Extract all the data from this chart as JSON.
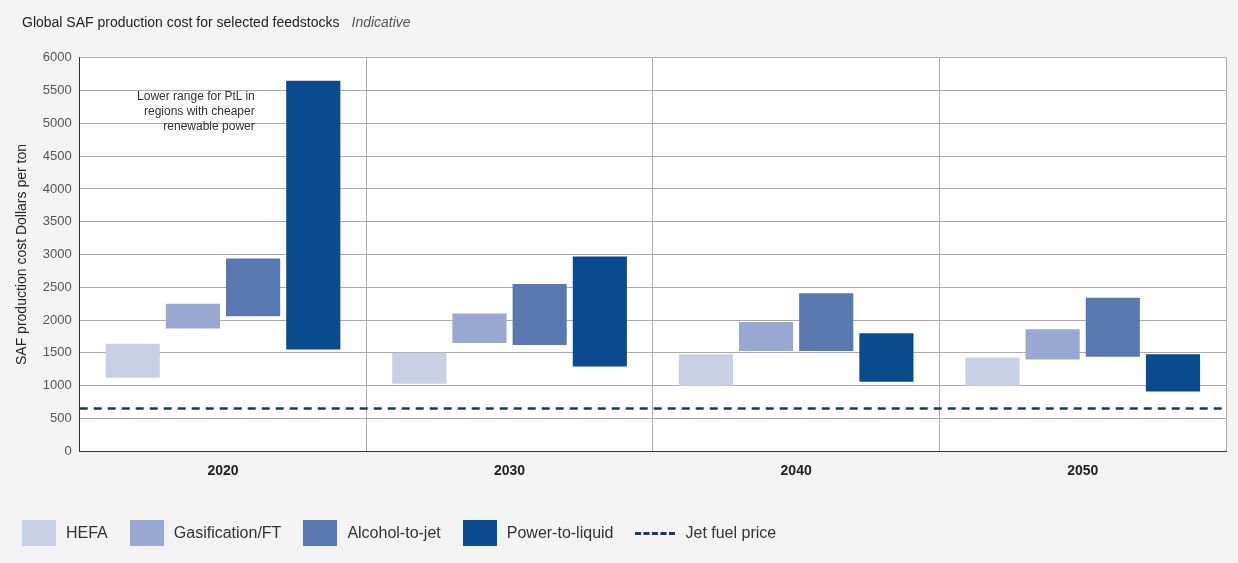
{
  "chart_data": {
    "type": "bar",
    "title": "Global SAF production cost for selected feedstocks",
    "subtitle": "Indicative",
    "ylabel": "SAF production cost Dollars per ton",
    "categories": [
      "2020",
      "2030",
      "2040",
      "2050"
    ],
    "series": [
      {
        "name": "HEFA",
        "color": "#c9d0e6",
        "base": [
          1120,
          1030,
          1000,
          1000
        ],
        "values": [
          520,
          470,
          480,
          430
        ]
      },
      {
        "name": "Gasification/FT",
        "color": "#98a8d0",
        "base": [
          1870,
          1650,
          1530,
          1400
        ],
        "values": [
          380,
          450,
          440,
          460
        ]
      },
      {
        "name": "Alcohol-to-jet",
        "color": "#5a78b0",
        "base": [
          2060,
          1620,
          1530,
          1440
        ],
        "values": [
          880,
          930,
          880,
          900
        ]
      },
      {
        "name": "Power-to-liquid",
        "color": "#0a4b8f",
        "base": [
          1550,
          1290,
          1060,
          910
        ],
        "values": [
          4100,
          1680,
          740,
          570
        ]
      }
    ],
    "ref_lines": [
      {
        "axis": "y",
        "value": 650,
        "label": "Jet fuel price",
        "color": "#1a3a5c",
        "line_style": "dashed"
      }
    ],
    "annotations": [
      "Lower range for PtL in regions with cheaper renewable power"
    ],
    "ylim": [
      0,
      6000
    ],
    "yticks": [
      0,
      500,
      1000,
      1500,
      2000,
      2500,
      3000,
      3500,
      4000,
      4500,
      5000,
      5500,
      6000
    ],
    "grid": true,
    "legend": "bottom"
  }
}
